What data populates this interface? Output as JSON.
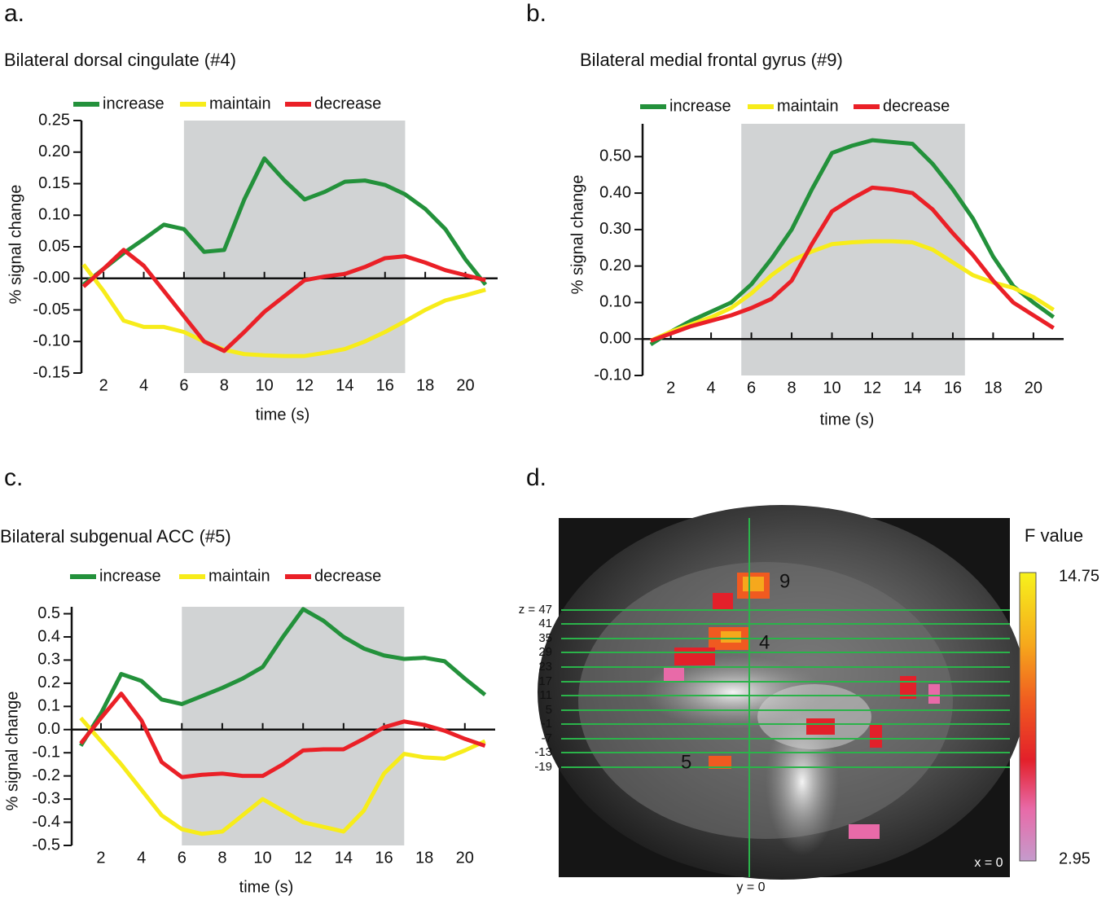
{
  "chart_data": [
    {
      "type": "line",
      "panel": "a.",
      "title": "Bilateral dorsal cingulate (#4)",
      "xlabel": "time (s)",
      "ylabel": "% signal change",
      "x": [
        1,
        2,
        3,
        4,
        5,
        6,
        7,
        8,
        9,
        10,
        11,
        12,
        13,
        14,
        15,
        16,
        17,
        18,
        19,
        20,
        21
      ],
      "series": [
        {
          "name": "increase",
          "color": "#23913b",
          "values": [
            -0.01,
            0.015,
            0.04,
            0.062,
            0.085,
            0.078,
            0.042,
            0.045,
            0.125,
            0.19,
            0.155,
            0.125,
            0.137,
            0.153,
            0.155,
            0.148,
            0.133,
            0.11,
            0.078,
            0.03,
            -0.01
          ]
        },
        {
          "name": "maintain",
          "color": "#f7ec1a",
          "values": [
            0.022,
            -0.02,
            -0.067,
            -0.077,
            -0.077,
            -0.085,
            -0.1,
            -0.113,
            -0.12,
            -0.122,
            -0.123,
            -0.123,
            -0.118,
            -0.112,
            -0.1,
            -0.085,
            -0.068,
            -0.05,
            -0.035,
            -0.027,
            -0.018
          ]
        },
        {
          "name": "decrease",
          "color": "#ea2027",
          "values": [
            -0.013,
            0.015,
            0.045,
            0.02,
            -0.02,
            -0.06,
            -0.1,
            -0.115,
            -0.085,
            -0.053,
            -0.028,
            -0.003,
            0.003,
            0.007,
            0.018,
            0.032,
            0.035,
            0.025,
            0.013,
            0.005,
            -0.003
          ]
        }
      ],
      "xlim": [
        0.9,
        21.6
      ],
      "ylim": [
        -0.15,
        0.25
      ],
      "xticks": [
        2,
        4,
        6,
        8,
        10,
        12,
        14,
        16,
        18,
        20
      ],
      "yticks": [
        0.25,
        {
          "value": 0.2,
          "label": "0.20"
        },
        0.15,
        {
          "value": 0.1,
          "label": "0.10"
        },
        0.05,
        {
          "value": 0,
          "label": "-0.00"
        },
        -0.05,
        {
          "value": -0.1,
          "label": "-0.10"
        },
        -0.15
      ],
      "shaded_span": [
        6,
        17
      ]
    },
    {
      "type": "line",
      "panel": "b.",
      "title": "Bilateral medial frontal gyrus (#9)",
      "xlabel": "time (s)",
      "ylabel": "% signal change",
      "x": [
        1,
        2,
        3,
        4,
        5,
        6,
        7,
        8,
        9,
        10,
        11,
        12,
        13,
        14,
        15,
        16,
        17,
        18,
        19,
        20,
        21
      ],
      "series": [
        {
          "name": "increase",
          "color": "#23913b",
          "values": [
            -0.015,
            0.02,
            0.05,
            0.075,
            0.1,
            0.15,
            0.22,
            0.3,
            0.41,
            0.51,
            0.53,
            0.545,
            0.54,
            0.535,
            0.48,
            0.41,
            0.33,
            0.226,
            0.145,
            0.1,
            0.06
          ]
        },
        {
          "name": "maintain",
          "color": "#f7ec1a",
          "values": [
            -0.005,
            0.02,
            0.04,
            0.06,
            0.085,
            0.125,
            0.175,
            0.215,
            0.24,
            0.26,
            0.265,
            0.268,
            0.268,
            0.265,
            0.245,
            0.21,
            0.175,
            0.155,
            0.14,
            0.115,
            0.08
          ]
        },
        {
          "name": "decrease",
          "color": "#ea2027",
          "values": [
            -0.005,
            0.015,
            0.035,
            0.05,
            0.065,
            0.085,
            0.11,
            0.16,
            0.26,
            0.35,
            0.385,
            0.415,
            0.41,
            0.4,
            0.355,
            0.29,
            0.23,
            0.16,
            0.1,
            0.065,
            0.03
          ]
        }
      ],
      "xlim": [
        0.6,
        21.5
      ],
      "ylim": [
        -0.1,
        0.59
      ],
      "xticks": [
        2,
        4,
        6,
        8,
        10,
        12,
        14,
        16,
        18,
        20
      ],
      "yticks": [
        {
          "value": 0.5,
          "label": "0.50"
        },
        {
          "value": 0.4,
          "label": "0.40"
        },
        {
          "value": 0.3,
          "label": "0.30"
        },
        {
          "value": 0.2,
          "label": "0.20"
        },
        {
          "value": 0.1,
          "label": "0.10"
        },
        {
          "value": 0,
          "label": "0.00"
        },
        {
          "value": -0.1,
          "label": "-0.10"
        }
      ],
      "shaded_span": [
        5.5,
        16.6
      ]
    },
    {
      "type": "line",
      "panel": "c.",
      "title": "Bilateral subgenual ACC (#5)",
      "xlabel": "time (s)",
      "ylabel": "% signal change",
      "x": [
        1,
        2,
        3,
        4,
        5,
        6,
        7,
        8,
        9,
        10,
        11,
        12,
        13,
        14,
        15,
        16,
        17,
        18,
        19,
        20,
        21
      ],
      "series": [
        {
          "name": "increase",
          "color": "#23913b",
          "values": [
            -0.07,
            0.07,
            0.24,
            0.21,
            0.13,
            0.11,
            0.145,
            0.18,
            0.22,
            0.27,
            0.4,
            0.52,
            0.47,
            0.4,
            0.35,
            0.32,
            0.305,
            0.31,
            0.295,
            0.22,
            0.15
          ]
        },
        {
          "name": "maintain",
          "color": "#f7ec1a",
          "values": [
            0.05,
            -0.05,
            -0.15,
            -0.26,
            -0.37,
            -0.43,
            -0.45,
            -0.44,
            -0.37,
            -0.3,
            -0.35,
            -0.4,
            -0.42,
            -0.44,
            -0.35,
            -0.19,
            -0.105,
            -0.12,
            -0.125,
            -0.09,
            -0.05
          ]
        },
        {
          "name": "decrease",
          "color": "#ea2027",
          "values": [
            -0.06,
            0.05,
            0.155,
            0.04,
            -0.14,
            -0.205,
            -0.195,
            -0.19,
            -0.2,
            -0.2,
            -0.15,
            -0.09,
            -0.085,
            -0.085,
            -0.04,
            0.01,
            0.035,
            0.02,
            -0.005,
            -0.04,
            -0.07
          ]
        }
      ],
      "xlim": [
        0.55,
        21.5
      ],
      "ylim": [
        -0.5,
        0.53
      ],
      "xticks": [
        2,
        4,
        6,
        8,
        10,
        12,
        14,
        16,
        18,
        20
      ],
      "yticks": [
        0.5,
        0.4,
        0.3,
        0.2,
        0.1,
        {
          "value": 0,
          "label": "0.0"
        },
        -0.1,
        -0.2,
        -0.3,
        -0.4,
        -0.5
      ],
      "shaded_span": [
        6,
        17
      ]
    }
  ],
  "brain_panel": {
    "panel": "d.",
    "z_labels": [
      "z = 47",
      "41",
      "35",
      "29",
      "23",
      "17",
      "11",
      "5",
      "-1",
      "-7",
      "-13",
      "-19"
    ],
    "region_labels": [
      "9",
      "4",
      "5"
    ],
    "y_label": "y = 0",
    "x_label": "x = 0",
    "colorbar": {
      "title": "F value",
      "max": 14.75,
      "min": 2.95
    }
  }
}
